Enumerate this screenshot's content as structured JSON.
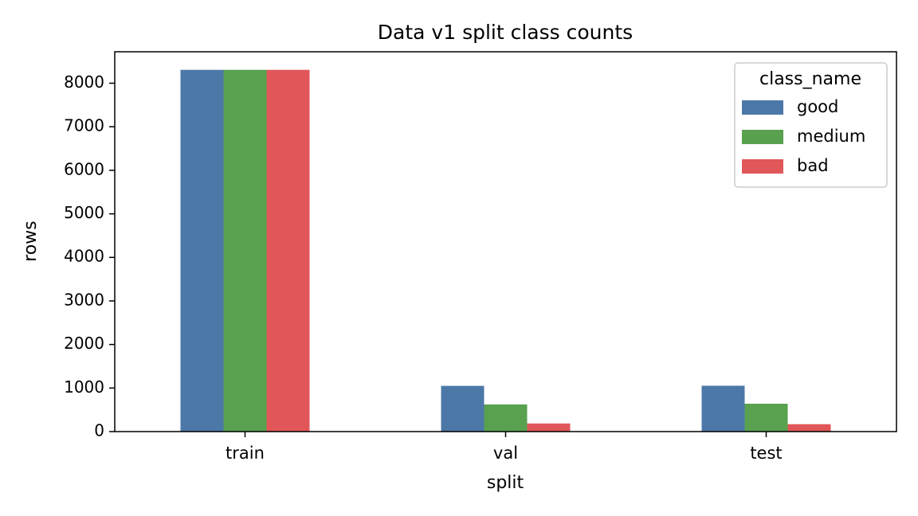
{
  "chart_data": {
    "type": "bar",
    "title": "Data v1 split class counts",
    "xlabel": "split",
    "ylabel": "rows",
    "categories": [
      "train",
      "val",
      "test"
    ],
    "series": [
      {
        "name": "good",
        "color": "#4c78a8",
        "values": [
          8307,
          1050,
          1053
        ]
      },
      {
        "name": "medium",
        "color": "#59a14f",
        "values": [
          8307,
          624,
          640
        ]
      },
      {
        "name": "bad",
        "color": "#e15759",
        "values": [
          8307,
          187,
          170
        ]
      }
    ],
    "ylim": [
      0,
      8722
    ],
    "yticks": [
      0,
      1000,
      2000,
      3000,
      4000,
      5000,
      6000,
      7000,
      8000
    ],
    "legend": {
      "title": "class_name",
      "position": "top-right"
    },
    "grid": false
  }
}
